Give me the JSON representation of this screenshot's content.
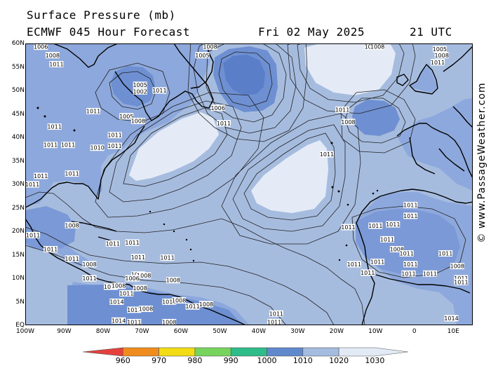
{
  "header": {
    "title": "Surface Pressure (mb)",
    "subtitle": "ECMWF 045 Hour Forecast",
    "date": "Fri 02 May 2025",
    "time": "21 UTC"
  },
  "credit": "© www.PassageWeather.com",
  "colors": {
    "ocean_base": "#a6bcdf",
    "low_1010": "#6e90d2",
    "low_1000": "#5a7ec8",
    "high_1020": "#e4ebf6",
    "land_low": "#7b99d6",
    "contour": "#222222",
    "coast": "#000000"
  },
  "lat_labels": [
    "60N",
    "55N",
    "50N",
    "45N",
    "40N",
    "35N",
    "30N",
    "25N",
    "20N",
    "15N",
    "10N",
    "5N",
    "EQ"
  ],
  "lon_labels": [
    "100W",
    "90W",
    "80W",
    "70W",
    "60W",
    "50W",
    "40W",
    "30W",
    "20W",
    "10W",
    "0",
    "10E"
  ],
  "pressure_labels": [
    {
      "text": "1006",
      "lon": -96,
      "lat": 59.3
    },
    {
      "text": "1008",
      "lon": -93,
      "lat": 57.5
    },
    {
      "text": "1011",
      "lon": -92,
      "lat": 55.6
    },
    {
      "text": "1005",
      "lon": -70.5,
      "lat": 51.2
    },
    {
      "text": "1002",
      "lon": -70.5,
      "lat": 49.8
    },
    {
      "text": "1011",
      "lon": -65.5,
      "lat": 50.0
    },
    {
      "text": "1011",
      "lon": -82.5,
      "lat": 45.6
    },
    {
      "text": "1005",
      "lon": -74,
      "lat": 44.5
    },
    {
      "text": "1008",
      "lon": -71,
      "lat": 43.5
    },
    {
      "text": "1011",
      "lon": -92.5,
      "lat": 42.3
    },
    {
      "text": "1011",
      "lon": -77,
      "lat": 40.5
    },
    {
      "text": "1011",
      "lon": -93.5,
      "lat": 38.4
    },
    {
      "text": "1011",
      "lon": -89,
      "lat": 38.4
    },
    {
      "text": "1010",
      "lon": -81.5,
      "lat": 37.8
    },
    {
      "text": "1011",
      "lon": -77,
      "lat": 38.2
    },
    {
      "text": "1011",
      "lon": -96,
      "lat": 31.8
    },
    {
      "text": "1011",
      "lon": -88,
      "lat": 32.3
    },
    {
      "text": "1011",
      "lon": -100,
      "lat": 30.0
    },
    {
      "text": "1008",
      "lon": -88,
      "lat": 21.3
    },
    {
      "text": "1011",
      "lon": -98,
      "lat": 19.2
    },
    {
      "text": "1011",
      "lon": -77.5,
      "lat": 17.4
    },
    {
      "text": "1011",
      "lon": -72.5,
      "lat": 17.6
    },
    {
      "text": "1011",
      "lon": -71,
      "lat": 14.5
    },
    {
      "text": "1011",
      "lon": -63.5,
      "lat": 14.4
    },
    {
      "text": "1011",
      "lon": -93.5,
      "lat": 16.2
    },
    {
      "text": "1011",
      "lon": -88,
      "lat": 14.2
    },
    {
      "text": "1008",
      "lon": -83.5,
      "lat": 13.0
    },
    {
      "text": "1011",
      "lon": -83.5,
      "lat": 10.0
    },
    {
      "text": "1011",
      "lon": -71,
      "lat": 10.8
    },
    {
      "text": "1008",
      "lon": -69.5,
      "lat": 10.6
    },
    {
      "text": "1006",
      "lon": -72.5,
      "lat": 10.0
    },
    {
      "text": "1008",
      "lon": -62,
      "lat": 9.6
    },
    {
      "text": "1011",
      "lon": -78,
      "lat": 8.2
    },
    {
      "text": "1008",
      "lon": -76,
      "lat": 8.4
    },
    {
      "text": "1008",
      "lon": -70.5,
      "lat": 7.9
    },
    {
      "text": "1011",
      "lon": -74,
      "lat": 6.8
    },
    {
      "text": "1014",
      "lon": -76.5,
      "lat": 5.0
    },
    {
      "text": "1011",
      "lon": -72,
      "lat": 3.3
    },
    {
      "text": "1008",
      "lon": -69,
      "lat": 3.5
    },
    {
      "text": "1011",
      "lon": -63,
      "lat": 5.0
    },
    {
      "text": "1008",
      "lon": -60.5,
      "lat": 5.3
    },
    {
      "text": "1011",
      "lon": -57,
      "lat": 4.0
    },
    {
      "text": "1008",
      "lon": -53.5,
      "lat": 4.5
    },
    {
      "text": "1014",
      "lon": -76,
      "lat": 1.0
    },
    {
      "text": "1011",
      "lon": -72,
      "lat": 0.5
    },
    {
      "text": "1008",
      "lon": -63,
      "lat": 0.5
    },
    {
      "text": "1005",
      "lon": -54.5,
      "lat": 57.5
    },
    {
      "text": "1008",
      "lon": -52.5,
      "lat": 60.0
    },
    {
      "text": "1006",
      "lon": -50.5,
      "lat": 46.3
    },
    {
      "text": "1011",
      "lon": -49,
      "lat": 43.0
    },
    {
      "text": "1011",
      "lon": -11,
      "lat": 59.6
    },
    {
      "text": "1008",
      "lon": -9.5,
      "lat": 59.5
    },
    {
      "text": "1005",
      "lon": 6.5,
      "lat": 58.8
    },
    {
      "text": "1008",
      "lon": 7,
      "lat": 57.5
    },
    {
      "text": "1011",
      "lon": 6,
      "lat": 56.0
    },
    {
      "text": "1011",
      "lon": -18.5,
      "lat": 45.9
    },
    {
      "text": "1008",
      "lon": -17,
      "lat": 43.3
    },
    {
      "text": "1011",
      "lon": -22.5,
      "lat": 36.4
    },
    {
      "text": "1011",
      "lon": -1,
      "lat": 25.6
    },
    {
      "text": "1011",
      "lon": -1,
      "lat": 23.3
    },
    {
      "text": "1011",
      "lon": -5.5,
      "lat": 21.5
    },
    {
      "text": "1011",
      "lon": -10,
      "lat": 21.2
    },
    {
      "text": "1011",
      "lon": -17,
      "lat": 20.9
    },
    {
      "text": "1011",
      "lon": -7,
      "lat": 18.3
    },
    {
      "text": "1008",
      "lon": -4.5,
      "lat": 16.2
    },
    {
      "text": "1011",
      "lon": -2,
      "lat": 15.3
    },
    {
      "text": "1011",
      "lon": 8,
      "lat": 15.3
    },
    {
      "text": "1011",
      "lon": -9.5,
      "lat": 13.5
    },
    {
      "text": "1011",
      "lon": -15.5,
      "lat": 13.0
    },
    {
      "text": "1011",
      "lon": -1,
      "lat": 13.0
    },
    {
      "text": "1008",
      "lon": 11,
      "lat": 12.6
    },
    {
      "text": "1011",
      "lon": -12,
      "lat": 11.2
    },
    {
      "text": "1011",
      "lon": -1.5,
      "lat": 11.0
    },
    {
      "text": "1011",
      "lon": 4,
      "lat": 11.0
    },
    {
      "text": "1011",
      "lon": -35.5,
      "lat": 2.5
    },
    {
      "text": "1011",
      "lon": -36,
      "lat": 0.2
    },
    {
      "text": "1014",
      "lon": 9.5,
      "lat": 1.5
    },
    {
      "text": "1011",
      "lon": 12,
      "lat": 10.0
    },
    {
      "text": "1011",
      "lon": 12,
      "lat": 9.2
    }
  ],
  "legend": {
    "ticks": [
      "960",
      "970",
      "980",
      "990",
      "1000",
      "1010",
      "1020",
      "1030"
    ],
    "colors": [
      "#e6403c",
      "#f08c1e",
      "#f2dc14",
      "#76d45e",
      "#2ebc8a",
      "#6088cc",
      "#a4bce0",
      "#e2eaf6"
    ]
  }
}
